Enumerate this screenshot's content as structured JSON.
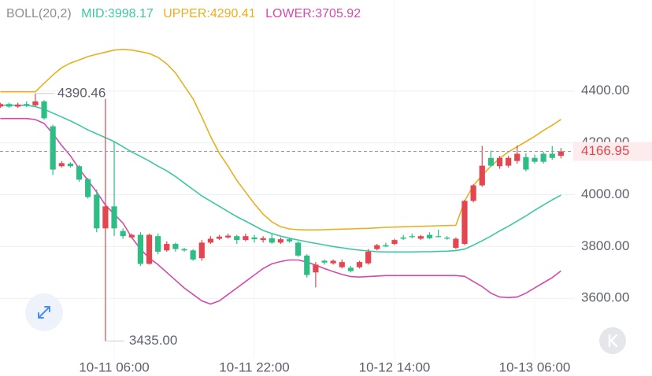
{
  "chart_data": {
    "type": "candlestick",
    "indicator": "BOLL(20,2)",
    "categories": [
      null,
      null,
      null,
      null,
      null,
      null,
      null,
      null,
      null,
      null,
      null,
      null,
      null,
      "10-11 06:00",
      null,
      null,
      null,
      null,
      null,
      null,
      null,
      null,
      null,
      null,
      null,
      null,
      null,
      null,
      null,
      "10-11 22:00",
      null,
      null,
      null,
      null,
      null,
      null,
      null,
      null,
      null,
      null,
      null,
      null,
      null,
      null,
      null,
      "10-12 14:00",
      null,
      null,
      null,
      null,
      null,
      null,
      null,
      null,
      null,
      null,
      null,
      null,
      null,
      null,
      null,
      "10-13 06:00",
      null,
      null,
      null
    ],
    "open": [
      4340,
      4350,
      4340,
      4350,
      4345,
      4360,
      4264,
      4110,
      4120,
      4110,
      4060,
      4000,
      3870,
      3955,
      3860,
      3835,
      3845,
      3733,
      3840,
      3785,
      3810,
      3790,
      3785,
      3755,
      3815,
      3830,
      3835,
      3840,
      3825,
      3835,
      3825,
      3832,
      3815,
      3828,
      3815,
      3765,
      3700,
      3745,
      3735,
      3720,
      3718,
      3720,
      3735,
      3790,
      3805,
      3810,
      3835,
      3840,
      3830,
      3845,
      3840,
      3834,
      3795,
      3810,
      3976,
      4036,
      4142,
      4110,
      4112,
      4130,
      4145,
      4142,
      4158,
      4158,
      4150
    ],
    "high": [
      4355,
      4355,
      4355,
      4360,
      4390.46,
      4365,
      4270,
      4130,
      4125,
      4115,
      4065,
      4020,
      4370,
      4203,
      3870,
      3850,
      3855,
      3850,
      3850,
      3820,
      3815,
      3795,
      3790,
      3825,
      3840,
      3845,
      3850,
      3845,
      3850,
      3845,
      3840,
      3850,
      3835,
      3835,
      3820,
      3770,
      3740,
      3750,
      3750,
      3750,
      3725,
      3745,
      3790,
      3810,
      3815,
      3830,
      3845,
      3850,
      3845,
      3855,
      3865,
      3840,
      3835,
      3980,
      4040,
      4188,
      4170,
      4150,
      4150,
      4190,
      4160,
      4155,
      4165,
      4188,
      4180
    ],
    "low": [
      4335,
      4335,
      4335,
      4338,
      4340,
      4290,
      4076,
      4105,
      4105,
      4050,
      3985,
      3855,
      3435,
      3840,
      3830,
      3830,
      3725,
      3730,
      3770,
      3780,
      3780,
      3780,
      3745,
      3745,
      3810,
      3825,
      3830,
      3810,
      3820,
      3815,
      3815,
      3810,
      3810,
      3815,
      3760,
      3680,
      3642,
      3730,
      3730,
      3715,
      3700,
      3715,
      3730,
      3785,
      3798,
      3805,
      3825,
      3832,
      3825,
      3828,
      3835,
      3826,
      3790,
      3805,
      3970,
      4030,
      4108,
      4100,
      4105,
      4120,
      4090,
      4120,
      4120,
      4135,
      4140
    ],
    "close": [
      4350,
      4340,
      4348,
      4345,
      4360,
      4295,
      4097,
      4122,
      4110,
      4058,
      3991,
      3870,
      3955,
      3870,
      3840,
      3845,
      3733,
      3845,
      3780,
      3810,
      3790,
      3785,
      3750,
      3815,
      3830,
      3838,
      3842,
      3825,
      3840,
      3828,
      3832,
      3815,
      3828,
      3820,
      3765,
      3690,
      3730,
      3738,
      3745,
      3740,
      3705,
      3740,
      3780,
      3805,
      3800,
      3825,
      3830,
      3836,
      3840,
      3832,
      3837,
      3830,
      3830,
      3976,
      4036,
      4112,
      4112,
      4142,
      4142,
      4158,
      4097,
      4127,
      4127,
      4142,
      4166.95
    ],
    "up_color": "#e2464f",
    "down_color": "#2ebd85",
    "series": [
      {
        "name": "MID",
        "color": "#3cc7a2",
        "values": [
          4345,
          4345,
          4345,
          4345,
          4340,
          4330,
          4315,
          4300,
          4285,
          4268,
          4250,
          4235,
          4220,
          4205,
          4185,
          4165,
          4148,
          4130,
          4110,
          4092,
          4070,
          4045,
          4020,
          3995,
          3975,
          3955,
          3935,
          3915,
          3898,
          3880,
          3862,
          3850,
          3840,
          3832,
          3825,
          3818,
          3812,
          3806,
          3800,
          3795,
          3790,
          3786,
          3783,
          3780,
          3779,
          3779,
          3779,
          3779,
          3780,
          3780,
          3781,
          3782,
          3784,
          3790,
          3805,
          3822,
          3840,
          3860,
          3878,
          3898,
          3918,
          3940,
          3960,
          3980,
          3998.17
        ]
      },
      {
        "name": "UPPER",
        "color": "#e8b020",
        "values": [
          4397,
          4397,
          4397,
          4397,
          4397,
          4430,
          4462,
          4490,
          4508,
          4520,
          4533,
          4542,
          4550,
          4558,
          4561,
          4558,
          4552,
          4545,
          4530,
          4505,
          4470,
          4420,
          4370,
          4300,
          4225,
          4160,
          4110,
          4055,
          4010,
          3965,
          3925,
          3895,
          3876,
          3868,
          3865,
          3864,
          3864,
          3865,
          3866,
          3867,
          3868,
          3869,
          3870,
          3872,
          3874,
          3875,
          3876,
          3877,
          3878,
          3879,
          3880,
          3881,
          3882,
          3975,
          4035,
          4075,
          4110,
          4140,
          4165,
          4185,
          4205,
          4225,
          4248,
          4268,
          4290.41
        ]
      },
      {
        "name": "LOWER",
        "color": "#d24bab",
        "values": [
          4294,
          4294,
          4294,
          4294,
          4290,
          4275,
          4235,
          4190,
          4150,
          4100,
          4055,
          4010,
          3960,
          3925,
          3890,
          3835,
          3790,
          3755,
          3730,
          3700,
          3670,
          3640,
          3615,
          3590,
          3578,
          3590,
          3615,
          3640,
          3665,
          3690,
          3715,
          3733,
          3742,
          3748,
          3748,
          3740,
          3728,
          3715,
          3703,
          3692,
          3684,
          3682,
          3684,
          3686,
          3688,
          3688,
          3688,
          3688,
          3688,
          3688,
          3688,
          3688,
          3688,
          3685,
          3665,
          3645,
          3620,
          3605,
          3603,
          3605,
          3620,
          3640,
          3660,
          3680,
          3705.92
        ]
      }
    ],
    "annotations": [
      {
        "label": "4390.46"
      },
      {
        "label": "3435.00"
      }
    ],
    "last_price": {
      "label": "4166.95"
    },
    "ylim": [
      3370,
      4630
    ],
    "yticks": [
      {
        "value": 3600,
        "label": "3600.00"
      },
      {
        "value": 3800,
        "label": "3800.00"
      },
      {
        "value": 4000,
        "label": "4000.00"
      },
      {
        "value": 4200,
        "label": "4200.00"
      },
      {
        "value": 4400,
        "label": "4400.00"
      }
    ],
    "grid": true
  }
}
